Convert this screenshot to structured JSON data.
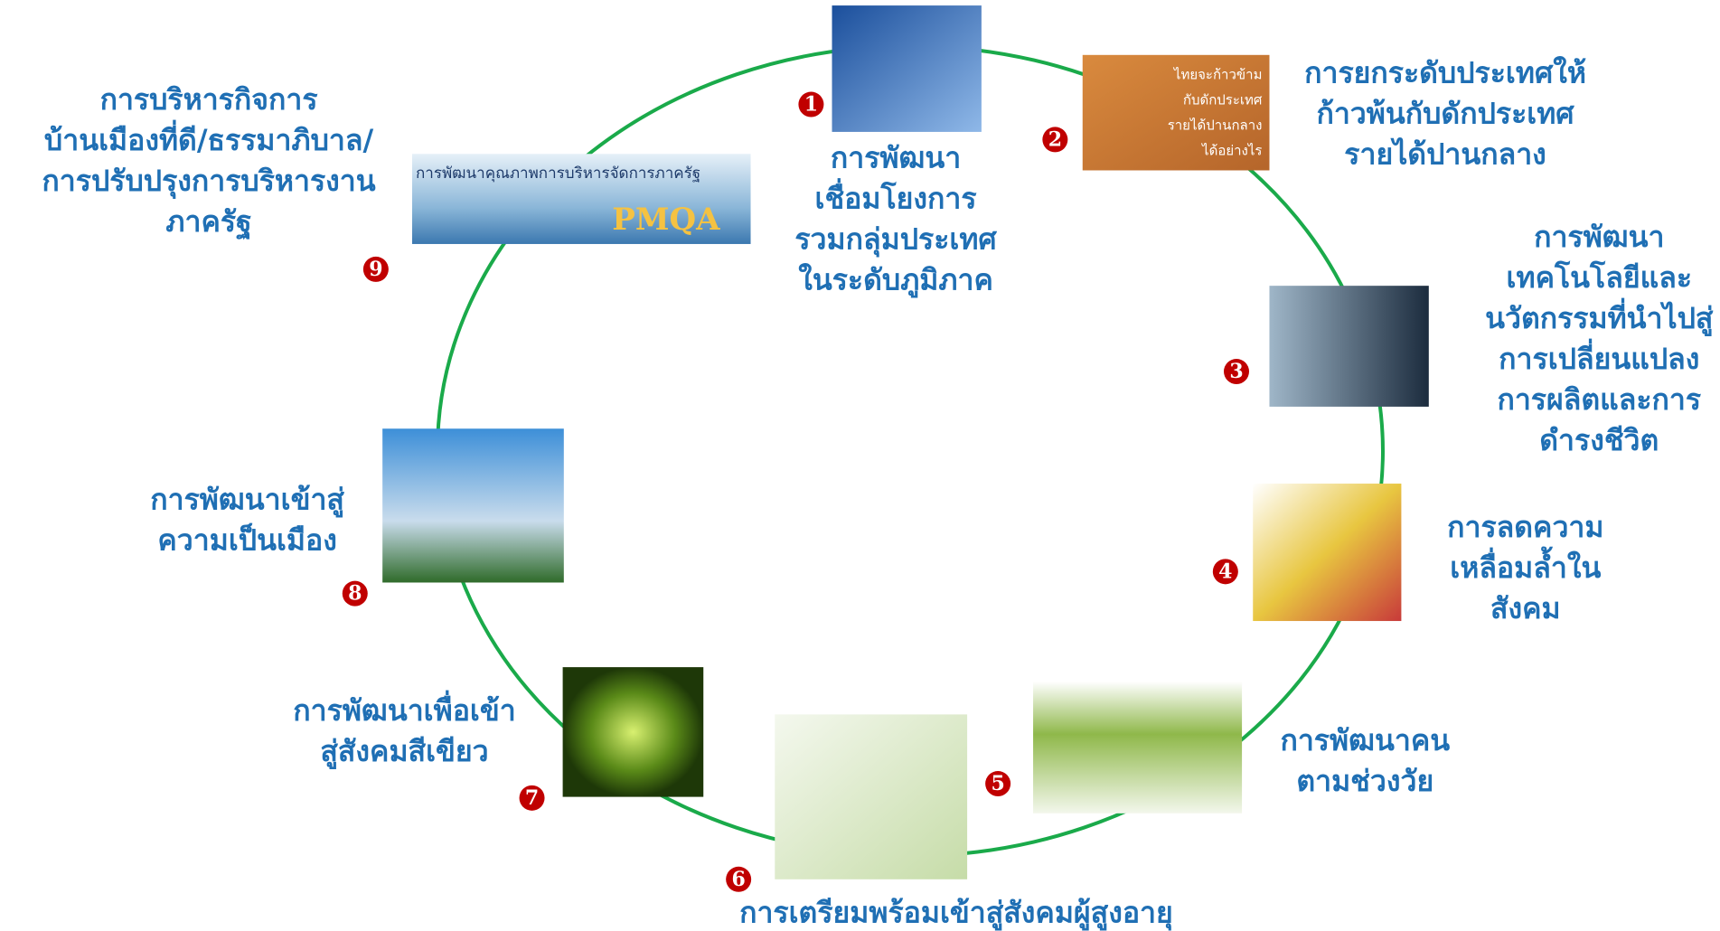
{
  "nodes": [
    {
      "number": "1",
      "lines": [
        "การพัฒนา",
        "เชื่อมโยงการ",
        "รวมกลุ่มประเทศ",
        "ในระดับภูมิภาค"
      ]
    },
    {
      "number": "2",
      "lines": [
        "การยกระดับประเทศให้",
        "ก้าวพ้นกับดักประเทศ",
        "รายได้ปานกลาง"
      ],
      "image_lines": [
        "ไทยจะก้าวข้าม",
        "กับดักประเทศ",
        "รายได้ปานกลาง",
        "ได้อย่างไร"
      ]
    },
    {
      "number": "3",
      "lines": [
        "การพัฒนา",
        "เทคโนโลยีและ",
        "นวัตกรรมที่นำไปสู่",
        "การเปลี่ยนแปลง",
        "การผลิตและการ",
        "ดำรงชีวิต"
      ]
    },
    {
      "number": "4",
      "lines": [
        "การลดความ",
        "เหลื่อมล้ำใน",
        "สังคม"
      ]
    },
    {
      "number": "5",
      "lines": [
        "การพัฒนาคน",
        "ตามช่วงวัย"
      ]
    },
    {
      "number": "6",
      "lines": [
        "การเตรียมพร้อมเข้าสู่สังคมผู้สูงอายุ"
      ]
    },
    {
      "number": "7",
      "lines": [
        "การพัฒนาเพื่อเข้า",
        "สู่สังคมสีเขียว"
      ]
    },
    {
      "number": "8",
      "lines": [
        "การพัฒนาเข้าสู่",
        "ความเป็นเมือง"
      ]
    },
    {
      "number": "9",
      "lines": [
        "การบริหารกิจการ",
        "บ้านเมืองที่ดี/ธรรมาภิบาล/",
        "การปรับปรุงการบริหารงาน",
        "ภาครัฐ"
      ],
      "image_lines": [
        "การพัฒนาคุณภาพการบริหารจัดการภาครัฐ",
        "PMQA"
      ]
    }
  ]
}
